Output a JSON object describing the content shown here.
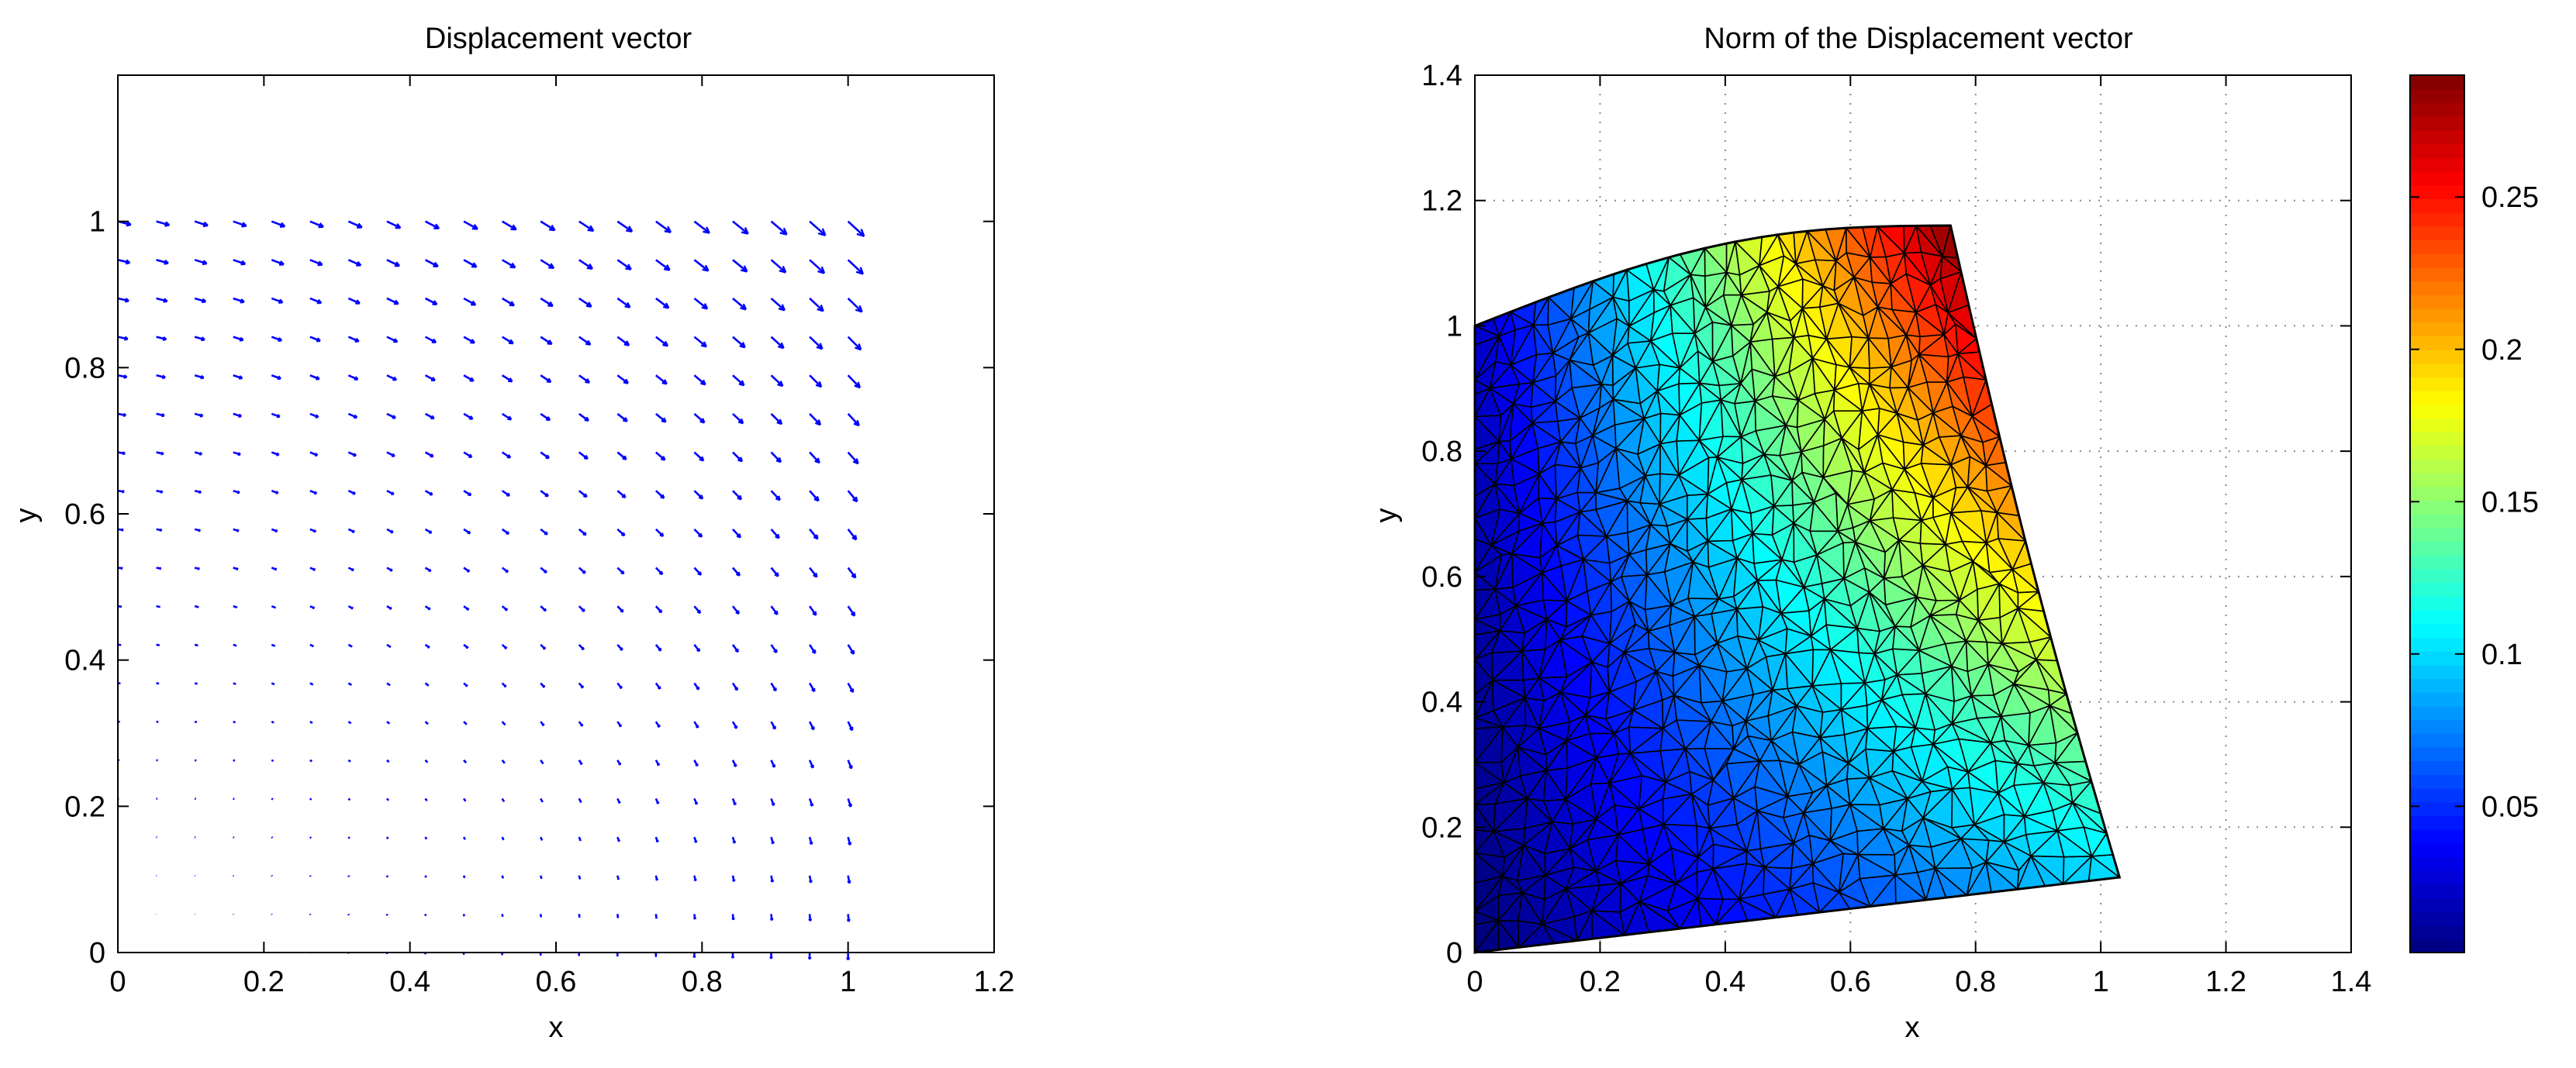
{
  "chart_data": [
    {
      "type": "quiver",
      "title": "Displacement vector",
      "xlabel": "x",
      "ylabel": "y",
      "xlim": [
        0,
        1.2
      ],
      "ylim": [
        0,
        1.2
      ],
      "xticks": [
        0,
        0.2,
        0.4,
        0.6,
        0.8,
        1,
        1.2
      ],
      "yticks": [
        0,
        0.2,
        0.4,
        0.6,
        0.8,
        1
      ],
      "xtick_labels": [
        "0",
        "0.2",
        "0.4",
        "0.6",
        "0.8",
        "1",
        "1.2"
      ],
      "ytick_labels": [
        "0",
        "0.2",
        "0.4",
        "0.6",
        "0.8",
        "1"
      ],
      "grid": false,
      "arrow_color": "#0000ff",
      "domain": "unit quarter square 0<=x<=1, 0<=y<=1",
      "field_samples": [
        {
          "x": 0.2,
          "y": 1.0,
          "u": 0.04,
          "v": -0.01
        },
        {
          "x": 0.6,
          "y": 1.0,
          "u": 0.12,
          "v": -0.03
        },
        {
          "x": 1.0,
          "y": 1.0,
          "u": 0.21,
          "v": -0.05
        },
        {
          "x": 1.0,
          "y": 0.6,
          "u": 0.12,
          "v": -0.08
        },
        {
          "x": 1.0,
          "y": 0.2,
          "u": 0.04,
          "v": -0.1
        },
        {
          "x": 0.5,
          "y": 0.5,
          "u": 0.06,
          "v": -0.04
        },
        {
          "x": 0.2,
          "y": 0.2,
          "u": 0.01,
          "v": -0.01
        }
      ]
    },
    {
      "type": "heatmap",
      "subtype": "triangulated mesh on deformed domain",
      "title": "Norm of the Displacement vector",
      "xlabel": "x",
      "ylabel": "y",
      "xlim": [
        0,
        1.4
      ],
      "ylim": [
        0,
        1.4
      ],
      "xticks": [
        0,
        0.2,
        0.4,
        0.6,
        0.8,
        1,
        1.2,
        1.4
      ],
      "yticks": [
        0,
        0.2,
        0.4,
        0.6,
        0.8,
        1,
        1.2,
        1.4
      ],
      "xtick_labels": [
        "0",
        "0.2",
        "0.4",
        "0.6",
        "0.8",
        "1",
        "1.2",
        "1.4"
      ],
      "ytick_labels": [
        "0",
        "0.2",
        "0.4",
        "0.6",
        "0.8",
        "1",
        "1.2",
        "1.4"
      ],
      "grid": true,
      "grid_style": "dotted",
      "colormap": "jet",
      "deformed_corners": [
        {
          "x": 0,
          "y": 0
        },
        {
          "x": 1.03,
          "y": 0.12
        },
        {
          "x": 0.76,
          "y": 1.16
        },
        {
          "x": 0,
          "y": 1.0
        }
      ],
      "corner_values": [
        {
          "corner": "origin",
          "value": 0.0
        },
        {
          "corner": "bottom-right",
          "value": 0.1
        },
        {
          "corner": "top-right",
          "value": 0.29
        },
        {
          "corner": "top-left",
          "value": 0.02
        }
      ],
      "colorbar": {
        "range": [
          0.002,
          0.29
        ],
        "ticks": [
          0.05,
          0.1,
          0.15,
          0.2,
          0.25
        ],
        "tick_labels": [
          "0.05",
          "0.1",
          "0.15",
          "0.2",
          "0.25"
        ],
        "position": "right"
      }
    }
  ]
}
